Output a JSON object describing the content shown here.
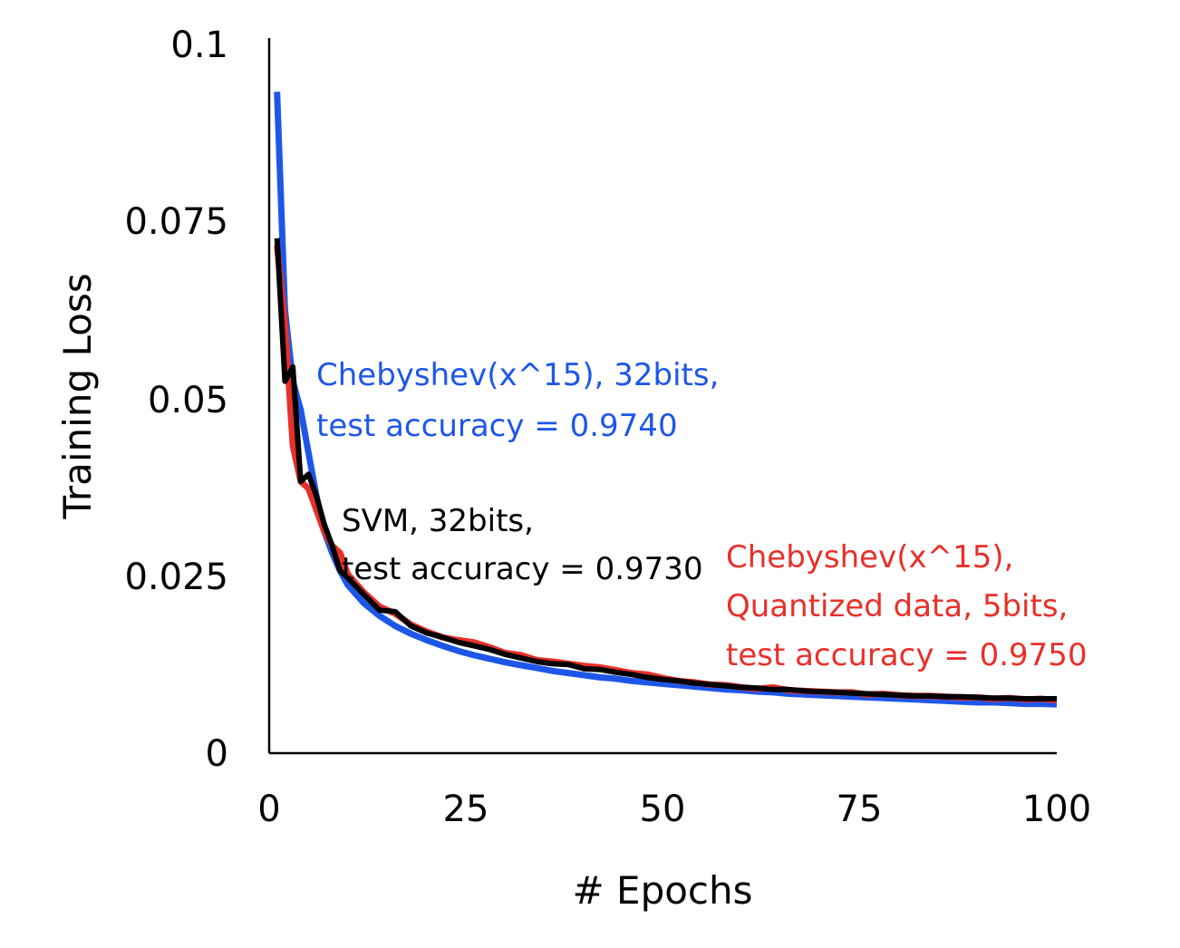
{
  "chart_data": {
    "type": "line",
    "title": "",
    "xlabel": "# Epochs",
    "ylabel": "Training Loss",
    "xlim": [
      0,
      100
    ],
    "ylim": [
      0,
      0.1
    ],
    "x_ticks": [
      "0",
      "25",
      "50",
      "75",
      "100"
    ],
    "x_tick_values": [
      0,
      25,
      50,
      75,
      100
    ],
    "y_ticks": [
      "0",
      "0.025",
      "0.05",
      "0.075",
      "0.1"
    ],
    "y_tick_values": [
      0,
      0.025,
      0.05,
      0.075,
      0.1
    ],
    "grid": false,
    "legend": "none",
    "x": [
      1,
      2,
      3,
      4,
      5,
      6,
      7,
      8,
      9,
      10,
      12,
      14,
      16,
      18,
      20,
      22,
      24,
      26,
      28,
      30,
      32,
      34,
      36,
      38,
      40,
      42,
      44,
      46,
      48,
      50,
      52,
      54,
      56,
      58,
      60,
      62,
      64,
      66,
      68,
      70,
      72,
      74,
      76,
      78,
      80,
      82,
      84,
      86,
      88,
      90,
      92,
      94,
      96,
      98,
      100
    ],
    "series": [
      {
        "color": "#1e57e8",
        "values": [
          0.0925,
          0.062,
          0.052,
          0.048,
          0.042,
          0.036,
          0.031,
          0.028,
          0.0255,
          0.0235,
          0.021,
          0.0192,
          0.0178,
          0.0167,
          0.0158,
          0.015,
          0.0143,
          0.0137,
          0.0132,
          0.0127,
          0.0123,
          0.0119,
          0.0115,
          0.0112,
          0.0109,
          0.0106,
          0.0104,
          0.0101,
          0.0099,
          0.0097,
          0.0095,
          0.0093,
          0.0091,
          0.0089,
          0.0088,
          0.0086,
          0.0085,
          0.0083,
          0.0082,
          0.0081,
          0.008,
          0.0079,
          0.0078,
          0.0077,
          0.0076,
          0.0075,
          0.0074,
          0.0073,
          0.0072,
          0.0071,
          0.0071,
          0.007,
          0.0069,
          0.0069,
          0.0068
        ]
      },
      {
        "color": "#e8302a",
        "values": [
          0.071,
          0.06,
          0.043,
          0.038,
          0.037,
          0.034,
          0.031,
          0.029,
          0.028,
          0.025,
          0.0225,
          0.0205,
          0.0195,
          0.018,
          0.017,
          0.0162,
          0.0158,
          0.0155,
          0.0148,
          0.014,
          0.0137,
          0.013,
          0.0128,
          0.0125,
          0.0122,
          0.012,
          0.0116,
          0.0112,
          0.011,
          0.0105,
          0.0101,
          0.0099,
          0.0096,
          0.0095,
          0.0092,
          0.009,
          0.0092,
          0.0088,
          0.0087,
          0.0086,
          0.0085,
          0.0085,
          0.0082,
          0.0083,
          0.0081,
          0.008,
          0.008,
          0.0079,
          0.0078,
          0.0078,
          0.0076,
          0.0077,
          0.0075,
          0.0076,
          0.0074
        ]
      },
      {
        "color": "#000000",
        "values": [
          0.072,
          0.052,
          0.054,
          0.038,
          0.039,
          0.036,
          0.032,
          0.029,
          0.0255,
          0.0245,
          0.0222,
          0.02,
          0.0198,
          0.0178,
          0.0168,
          0.0162,
          0.0155,
          0.015,
          0.0145,
          0.0138,
          0.0133,
          0.0128,
          0.0125,
          0.0124,
          0.0118,
          0.0117,
          0.0113,
          0.011,
          0.0106,
          0.0103,
          0.0101,
          0.0098,
          0.0096,
          0.0094,
          0.0092,
          0.0091,
          0.0089,
          0.0089,
          0.0087,
          0.0086,
          0.0085,
          0.0084,
          0.0083,
          0.0082,
          0.0081,
          0.008,
          0.008,
          0.0079,
          0.0079,
          0.0078,
          0.0077,
          0.0077,
          0.0076,
          0.0076,
          0.0076
        ]
      }
    ],
    "annotations": [
      {
        "lines": [
          "Chebyshev(x^15), 32bits,",
          "test accuracy = 0.9740"
        ],
        "color": "#1e57e8"
      },
      {
        "lines": [
          "SVM, 32bits,",
          "test accuracy = 0.9730"
        ],
        "color": "#000000"
      },
      {
        "lines": [
          "Chebyshev(x^15),",
          "Quantized data, 5bits,",
          "test accuracy = 0.9750"
        ],
        "color": "#e8302a"
      }
    ]
  }
}
